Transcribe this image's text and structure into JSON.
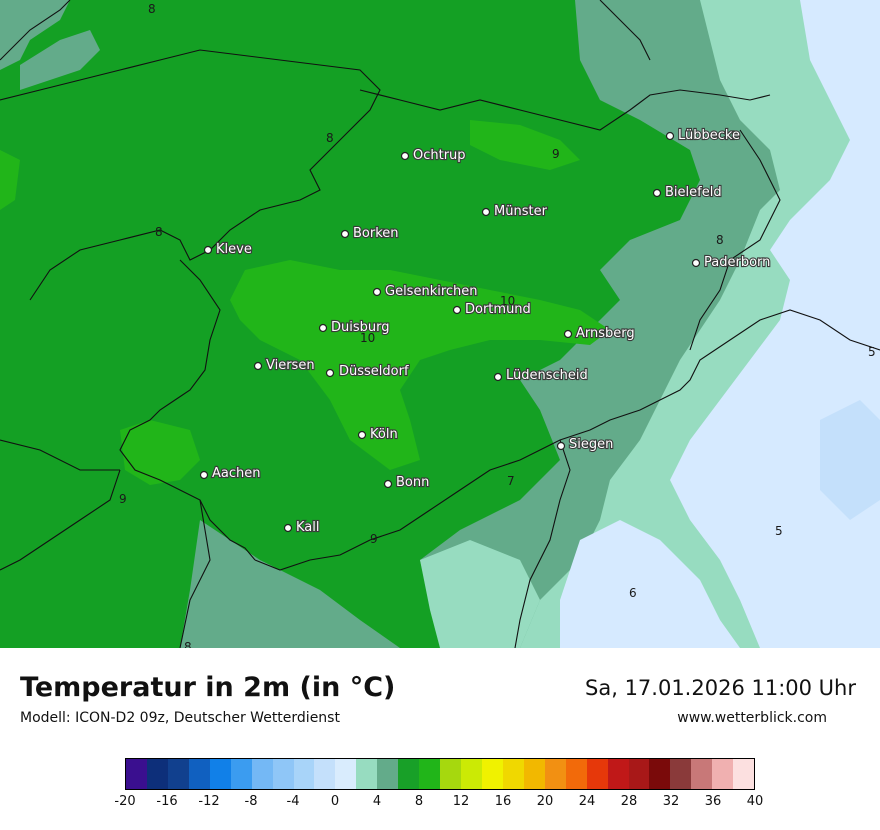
{
  "title": "Temperatur in 2m (in °C)",
  "subtitle": "Modell: ICON-D2 09z, Deutscher Wetterdienst",
  "datetime": "Sa, 17.01.2026 11:00 Uhr",
  "website": "www.wetterblick.com",
  "colors": {
    "temp_5_6": "#97dcc0",
    "temp_6_7": "#63ab8a",
    "temp_7_8": "#1ca636",
    "temp_8_9": "#14a024",
    "temp_9_10": "#21b519",
    "cold_light": "#d6eaff",
    "cold_lighter": "#c4e0fb"
  },
  "cities": [
    {
      "name": "Ochtrup",
      "id": "ochtrup"
    },
    {
      "name": "Lübbecke",
      "id": "luebbecke"
    },
    {
      "name": "Bielefeld",
      "id": "bielefeld"
    },
    {
      "name": "Münster",
      "id": "muenster"
    },
    {
      "name": "Borken",
      "id": "borken"
    },
    {
      "name": "Kleve",
      "id": "kleve"
    },
    {
      "name": "Paderborn",
      "id": "paderborn"
    },
    {
      "name": "Gelsenkirchen",
      "id": "gelsenkirchen"
    },
    {
      "name": "Dortmund",
      "id": "dortmund"
    },
    {
      "name": "Duisburg",
      "id": "duisburg"
    },
    {
      "name": "Arnsberg",
      "id": "arnsberg"
    },
    {
      "name": "Viersen",
      "id": "viersen"
    },
    {
      "name": "Düsseldorf",
      "id": "duesseldorf"
    },
    {
      "name": "Lüdenscheid",
      "id": "luedenscheid"
    },
    {
      "name": "Köln",
      "id": "koeln"
    },
    {
      "name": "Siegen",
      "id": "siegen"
    },
    {
      "name": "Aachen",
      "id": "aachen"
    },
    {
      "name": "Bonn",
      "id": "bonn"
    },
    {
      "name": "Kall",
      "id": "kall"
    }
  ],
  "isolines": [
    "8",
    "8",
    "9",
    "8",
    "8",
    "10",
    "10",
    "9",
    "7",
    "9",
    "6",
    "5",
    "8",
    "5"
  ],
  "colorbar": {
    "colors": [
      "#3a0f8f",
      "#0d2f7a",
      "#11408e",
      "#1060c0",
      "#1180e8",
      "#3b9cf0",
      "#74b8f5",
      "#8fc6f7",
      "#a8d4f9",
      "#c4e0fb",
      "#d9ecfd",
      "#97dcc0",
      "#63ab8a",
      "#18a028",
      "#21b519",
      "#a6d80e",
      "#cbea05",
      "#f0f200",
      "#f0d800",
      "#f2b800",
      "#f29012",
      "#f26a0a",
      "#e6380a",
      "#c01818",
      "#a81818",
      "#7a0a0a",
      "#8a3a3a",
      "#c87878",
      "#f0b0b0",
      "#fce0e0"
    ],
    "ticks": [
      "-20",
      "-16",
      "-12",
      "-8",
      "-4",
      "0",
      "4",
      "8",
      "12",
      "16",
      "20",
      "24",
      "28",
      "32",
      "36",
      "40"
    ]
  }
}
